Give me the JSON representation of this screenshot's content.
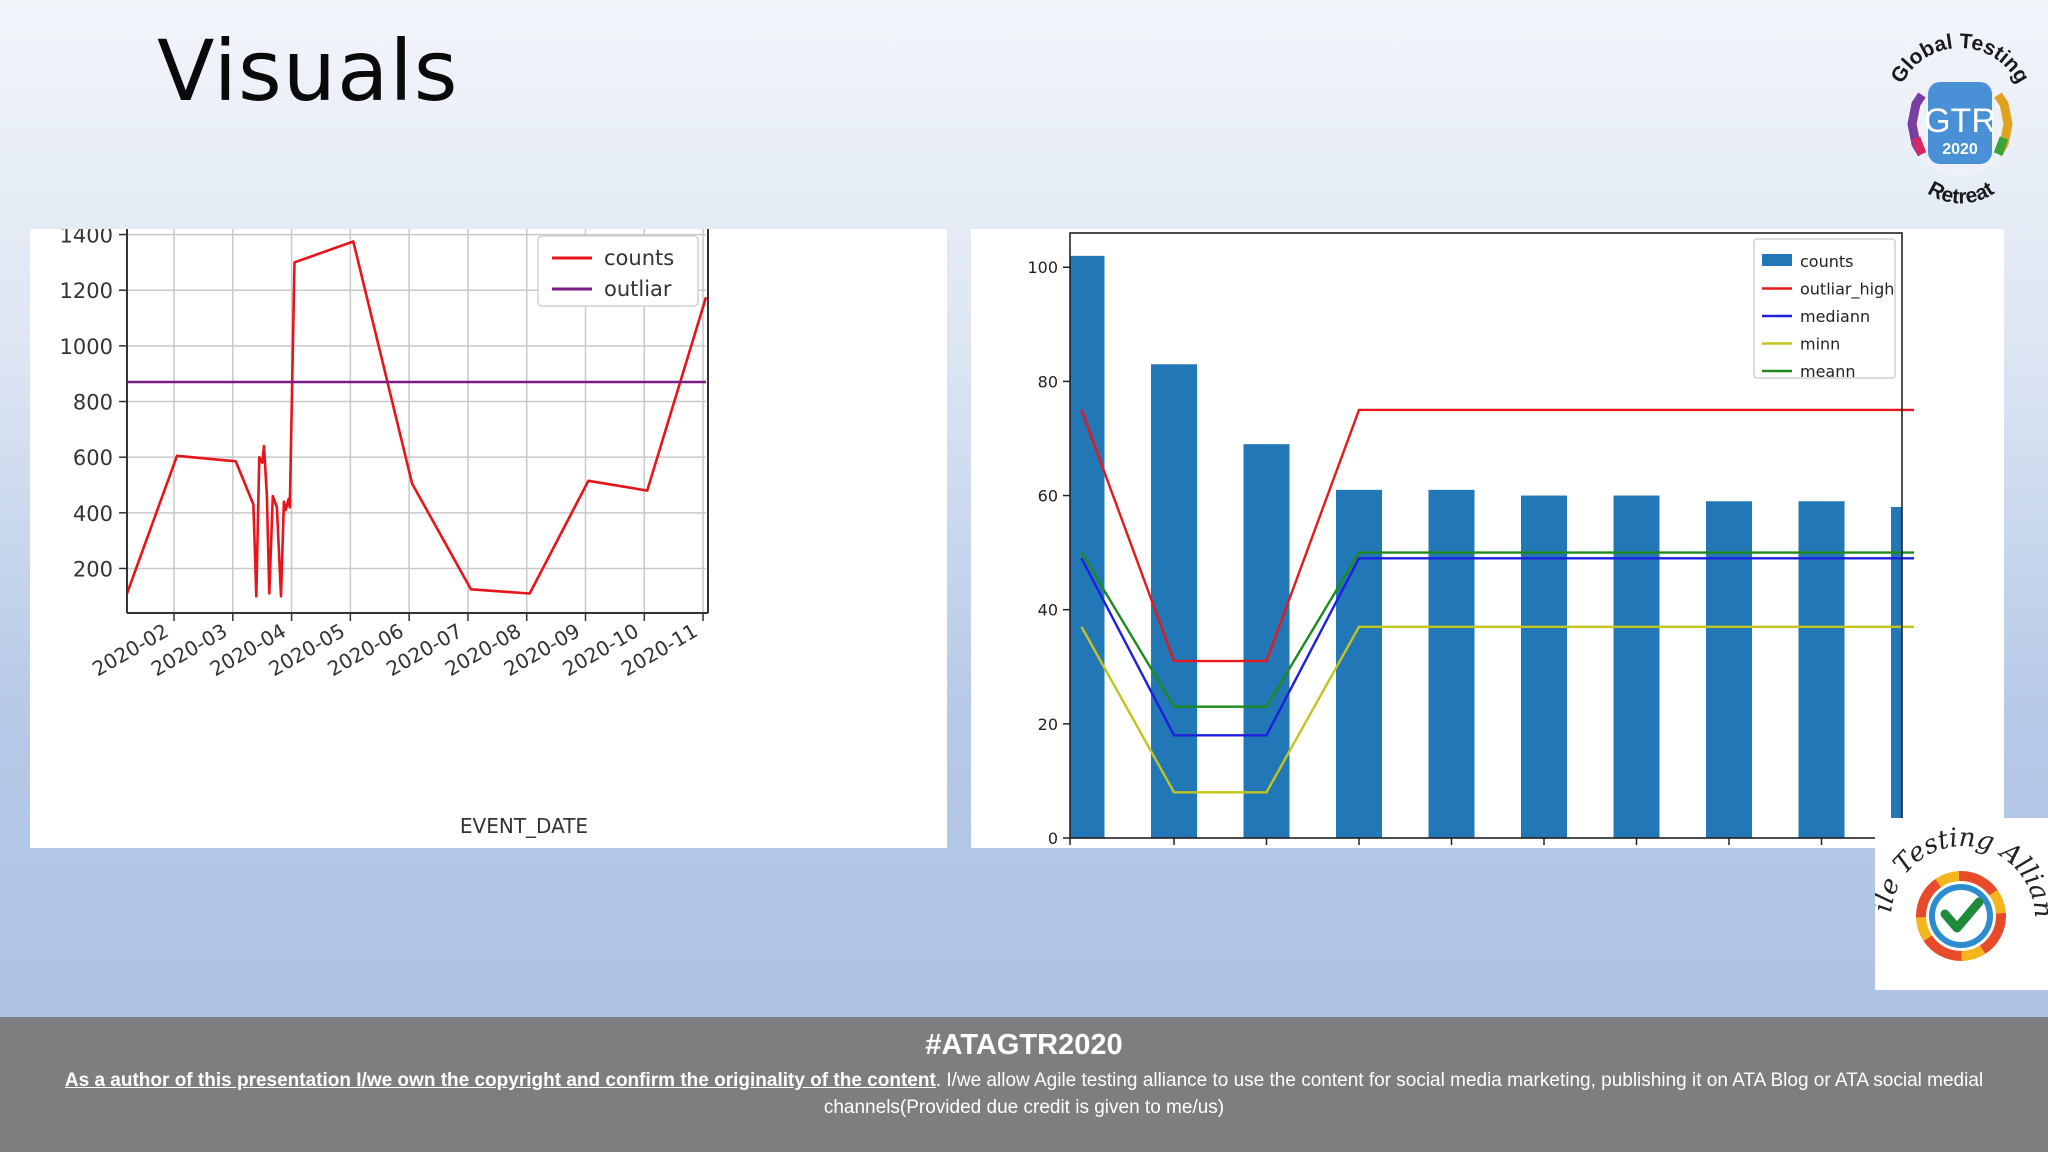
{
  "slide": {
    "title": "Visuals"
  },
  "logos": {
    "gtr": {
      "top_text": "Global Testing",
      "center_text": "GTR",
      "year": "2020",
      "bottom_text": "Retreat"
    },
    "ata": {
      "text": "Agile Testing Alliance"
    }
  },
  "footer": {
    "hashtag": "#ATAGTR2020",
    "underlined": "As a author of this presentation I/we own the copyright and confirm the originality of the content",
    "rest": ". I/we allow Agile testing alliance to use the content for social media marketing, publishing it on ATA Blog or ATA social medial channels(Provided due credit is given to me/us)"
  },
  "chart_data": [
    {
      "type": "line",
      "xlabel": "EVENT_DATE",
      "ylabel": "",
      "xlim": [
        1.2,
        11.05
      ],
      "ylim": [
        40,
        1420
      ],
      "yticks": [
        200,
        400,
        600,
        800,
        1000,
        1200,
        1400
      ],
      "xticks": [
        {
          "label": "2020-02",
          "x": 2
        },
        {
          "label": "2020-03",
          "x": 3
        },
        {
          "label": "2020-04",
          "x": 4
        },
        {
          "label": "2020-05",
          "x": 5
        },
        {
          "label": "2020-06",
          "x": 6
        },
        {
          "label": "2020-07",
          "x": 7
        },
        {
          "label": "2020-08",
          "x": 8
        },
        {
          "label": "2020-09",
          "x": 9
        },
        {
          "label": "2020-10",
          "x": 10
        },
        {
          "label": "2020-11",
          "x": 11
        }
      ],
      "grid": true,
      "legend_position": "top-right",
      "series": [
        {
          "name": "counts",
          "color": "#e8141c",
          "x": [
            1.2,
            2.05,
            3.05,
            3.35,
            3.4,
            3.45,
            3.5,
            3.53,
            3.58,
            3.62,
            3.68,
            3.75,
            3.82,
            3.87,
            3.9,
            3.95,
            3.97,
            4.05,
            5.05,
            6.05,
            7.05,
            8.05,
            9.05,
            10.05,
            11.05
          ],
          "y": [
            110,
            605,
            585,
            430,
            100,
            600,
            580,
            640,
            460,
            110,
            460,
            420,
            100,
            440,
            410,
            450,
            420,
            1300,
            1375,
            505,
            125,
            110,
            515,
            480,
            1175
          ]
        },
        {
          "name": "outliar",
          "color": "#7b1b86",
          "x": [
            1.2,
            11.05
          ],
          "y": [
            870,
            870
          ]
        }
      ]
    },
    {
      "type": "bar",
      "xlabel": "",
      "ylabel": "",
      "ylim": [
        0,
        106
      ],
      "yticks": [
        0,
        20,
        40,
        60,
        80,
        100
      ],
      "categories": [
        "",
        "",
        "",
        "",
        "",
        "",
        "",
        "",
        "",
        ""
      ],
      "legend_position": "top-right",
      "series": [
        {
          "name": "counts",
          "kind": "bar",
          "color": "#2277b6",
          "values": [
            102,
            83,
            69,
            61,
            61,
            60,
            60,
            59,
            59,
            58
          ]
        },
        {
          "name": "outliar_high",
          "kind": "line",
          "color": "#e3191c",
          "values": [
            75,
            31,
            31,
            75,
            75,
            75,
            75,
            75,
            75,
            75
          ]
        },
        {
          "name": "mediann",
          "kind": "line",
          "color": "#1f1fe0",
          "values": [
            49,
            18,
            18,
            49,
            49,
            49,
            49,
            49,
            49,
            49
          ]
        },
        {
          "name": "minn",
          "kind": "line",
          "color": "#c4c41e",
          "values": [
            37,
            8,
            8,
            37,
            37,
            37,
            37,
            37,
            37,
            37
          ]
        },
        {
          "name": "meann",
          "kind": "line",
          "color": "#1e8a1e",
          "values": [
            50,
            23,
            23,
            50,
            50,
            50,
            50,
            50,
            50,
            50
          ]
        }
      ]
    }
  ]
}
